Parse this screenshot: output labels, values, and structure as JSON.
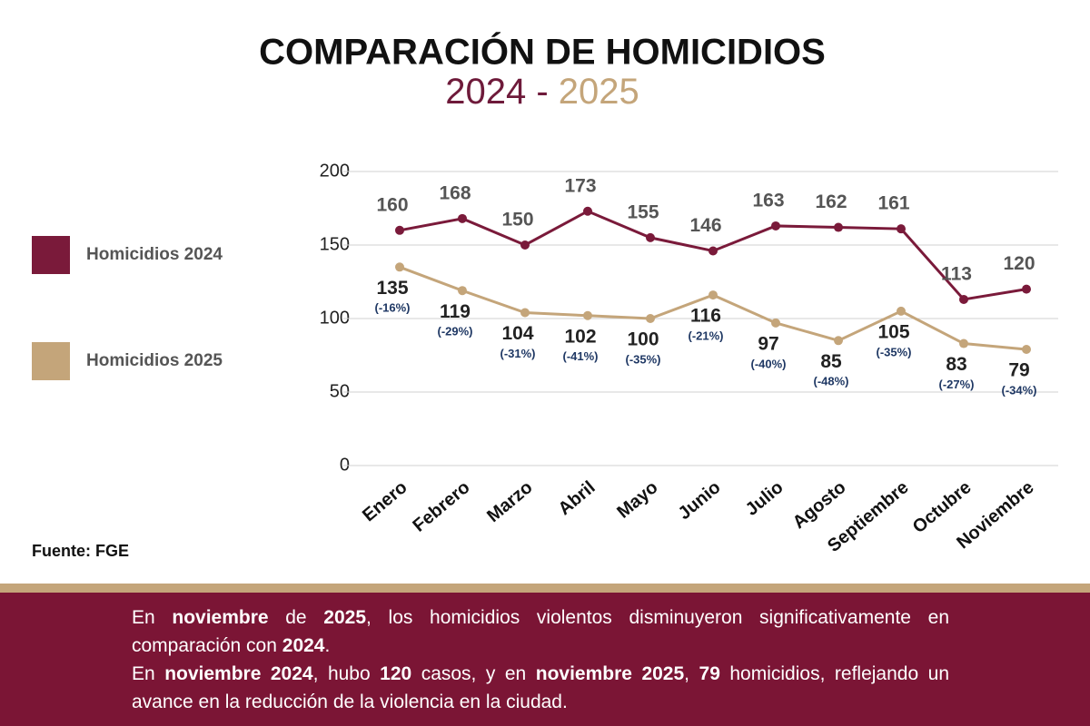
{
  "chart_data": {
    "type": "line",
    "title": "COMPARACIÓN DE HOMICIDIOS",
    "subtitle": [
      {
        "text": "2024",
        "color": "#6e1a3a"
      },
      {
        "text": " - ",
        "color": "#6e1a3a"
      },
      {
        "text": "2025",
        "color": "#c4a57a"
      }
    ],
    "categories": [
      "Enero",
      "Febrero",
      "Marzo",
      "Abril",
      "Mayo",
      "Junio",
      "Julio",
      "Agosto",
      "Septiembre",
      "Octubre",
      "Noviembre"
    ],
    "series": [
      {
        "name": "Homicidios 2024",
        "color": "#7a1a3a",
        "values": [
          160,
          168,
          150,
          173,
          155,
          146,
          163,
          162,
          161,
          113,
          120
        ]
      },
      {
        "name": "Homicidios 2025",
        "color": "#c4a57a",
        "values": [
          135,
          119,
          104,
          102,
          100,
          116,
          97,
          85,
          105,
          83,
          79
        ],
        "changes": [
          "(-16%)",
          "(-29%)",
          "(-31%)",
          "(-41%)",
          "(-35%)",
          "(-21%)",
          "(-40%)",
          "(-48%)",
          "(-35%)",
          "(-27%)",
          "(-34%)"
        ]
      }
    ],
    "ylim": [
      0,
      200
    ],
    "yticks": [
      0,
      50,
      100,
      150,
      200
    ],
    "grid": true,
    "legend": "left",
    "source": "Fuente: FGE"
  },
  "footer": {
    "paragraphs": [
      {
        "runs": [
          {
            "text": "En ",
            "bold": false
          },
          {
            "text": "noviembre",
            "bold": true
          },
          {
            "text": " de ",
            "bold": false
          },
          {
            "text": "2025",
            "bold": true
          },
          {
            "text": ", los homicidios violentos disminuyeron significativamente en comparación con ",
            "bold": false
          },
          {
            "text": "2024",
            "bold": true
          },
          {
            "text": ".",
            "bold": false
          }
        ]
      },
      {
        "runs": [
          {
            "text": "En ",
            "bold": false
          },
          {
            "text": "noviembre 2024",
            "bold": true
          },
          {
            "text": ", hubo ",
            "bold": false
          },
          {
            "text": "120",
            "bold": true
          },
          {
            "text": " casos, y en ",
            "bold": false
          },
          {
            "text": "noviembre 2025",
            "bold": true
          },
          {
            "text": ", ",
            "bold": false
          },
          {
            "text": "79",
            "bold": true
          },
          {
            "text": " homicidios, reflejando un avance en la reducción de la violencia en la ciudad.",
            "bold": false
          }
        ]
      }
    ]
  }
}
